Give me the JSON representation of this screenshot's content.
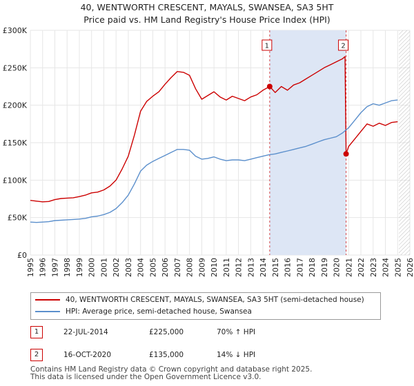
{
  "title_line1": "40, WENTWORTH CRESCENT, MAYALS, SWANSEA, SA3 5HT",
  "title_line2": "Price paid vs. HM Land Registry's House Price Index (HPI)",
  "legend": {
    "series1": "40, WENTWORTH CRESCENT, MAYALS, SWANSEA, SA3 5HT (semi-detached house)",
    "series2": "HPI: Average price, semi-detached house, Swansea"
  },
  "colors": {
    "property": "#cc0000",
    "hpi": "#5b8fcc",
    "shade": "#dde6f5",
    "grid": "#e6e6e6",
    "vline": "#cc0000"
  },
  "annotations": [
    {
      "num": "1",
      "date": "22-JUL-2014",
      "price": "£225,000",
      "hpi": "70% ↑ HPI"
    },
    {
      "num": "2",
      "date": "16-OCT-2020",
      "price": "£135,000",
      "hpi": "14% ↓ HPI"
    }
  ],
  "footer": {
    "line1": "Contains HM Land Registry data © Crown copyright and database right 2025.",
    "line2": "This data is licensed under the Open Government Licence v3.0."
  },
  "chart_data": {
    "type": "line",
    "title": "40, WENTWORTH CRESCENT, MAYALS, SWANSEA, SA3 5HT — Price paid vs. HM Land Registry's House Price Index (HPI)",
    "xlabel": "",
    "ylabel": "",
    "xlim": [
      1995,
      2026
    ],
    "ylim": [
      0,
      300000
    ],
    "yticks": [
      0,
      50000,
      100000,
      150000,
      200000,
      250000,
      300000
    ],
    "ytick_labels": [
      "£0",
      "£50K",
      "£100K",
      "£150K",
      "£200K",
      "£250K",
      "£300K"
    ],
    "xticks": [
      1995,
      1996,
      1997,
      1998,
      1999,
      2000,
      2001,
      2002,
      2003,
      2004,
      2005,
      2006,
      2007,
      2008,
      2009,
      2010,
      2011,
      2012,
      2013,
      2014,
      2015,
      2016,
      2017,
      2018,
      2019,
      2020,
      2021,
      2022,
      2023,
      2024,
      2025,
      2026
    ],
    "grid": true,
    "shaded_region": [
      2014.55,
      2020.79
    ],
    "future_hatch_from": 2025.1,
    "sales": [
      {
        "label": "1",
        "x": 2014.55,
        "y": 225000
      },
      {
        "label": "2",
        "x": 2020.79,
        "y": 135000
      }
    ],
    "series": [
      {
        "name": "40, WENTWORTH CRESCENT, MAYALS, SWANSEA, SA3 5HT (semi-detached house)",
        "color": "#cc0000",
        "x": [
          1995,
          1995.5,
          1996,
          1996.5,
          1997,
          1997.5,
          1998,
          1998.5,
          1999,
          1999.5,
          2000,
          2000.5,
          2001,
          2001.5,
          2002,
          2002.5,
          2003,
          2003.5,
          2004,
          2004.5,
          2005,
          2005.5,
          2006,
          2006.5,
          2007,
          2007.5,
          2008,
          2008.5,
          2009,
          2009.5,
          2010,
          2010.5,
          2011,
          2011.5,
          2012,
          2012.5,
          2013,
          2013.5,
          2014,
          2014.55,
          2015,
          2015.5,
          2016,
          2016.5,
          2017,
          2017.5,
          2018,
          2018.5,
          2019,
          2019.5,
          2020,
          2020.5,
          2020.7,
          2020.79,
          2021,
          2021.5,
          2022,
          2022.5,
          2023,
          2023.5,
          2024,
          2024.5,
          2025
        ],
        "values": [
          73000,
          72000,
          71000,
          71500,
          74000,
          75500,
          76000,
          76500,
          78000,
          80000,
          83000,
          84000,
          87000,
          92000,
          100000,
          115000,
          132000,
          160000,
          192000,
          205000,
          212000,
          218000,
          228000,
          237000,
          245000,
          244000,
          240000,
          222000,
          208000,
          213000,
          218000,
          211000,
          207000,
          212000,
          209000,
          206000,
          211000,
          214000,
          220000,
          225000,
          217000,
          225000,
          220000,
          227000,
          230000,
          235000,
          240000,
          245000,
          250000,
          254000,
          258000,
          262000,
          265000,
          135000,
          145000,
          155000,
          165000,
          175000,
          172000,
          176000,
          173000,
          177000,
          178000
        ]
      },
      {
        "name": "HPI: Average price, semi-detached house, Swansea",
        "color": "#5b8fcc",
        "x": [
          1995,
          1995.5,
          1996,
          1996.5,
          1997,
          1997.5,
          1998,
          1998.5,
          1999,
          1999.5,
          2000,
          2000.5,
          2001,
          2001.5,
          2002,
          2002.5,
          2003,
          2003.5,
          2004,
          2004.5,
          2005,
          2005.5,
          2006,
          2006.5,
          2007,
          2007.5,
          2008,
          2008.5,
          2009,
          2009.5,
          2010,
          2010.5,
          2011,
          2011.5,
          2012,
          2012.5,
          2013,
          2013.5,
          2014,
          2014.5,
          2015,
          2015.5,
          2016,
          2016.5,
          2017,
          2017.5,
          2018,
          2018.5,
          2019,
          2019.5,
          2020,
          2020.5,
          2021,
          2021.5,
          2022,
          2022.5,
          2023,
          2023.5,
          2024,
          2024.5,
          2025
        ],
        "values": [
          44000,
          43500,
          44000,
          44500,
          46000,
          46500,
          47000,
          47500,
          48000,
          49000,
          51000,
          52000,
          54000,
          57000,
          62000,
          70000,
          80000,
          95000,
          112000,
          120000,
          125000,
          129000,
          133000,
          137000,
          141000,
          141000,
          140000,
          132000,
          128000,
          129000,
          131000,
          128000,
          126000,
          127000,
          127000,
          126000,
          128000,
          130000,
          132000,
          134000,
          135000,
          137000,
          139000,
          141000,
          143000,
          145000,
          148000,
          151000,
          154000,
          156000,
          158000,
          163000,
          170000,
          180000,
          190000,
          198000,
          202000,
          200000,
          203000,
          206000,
          207000
        ]
      }
    ]
  }
}
